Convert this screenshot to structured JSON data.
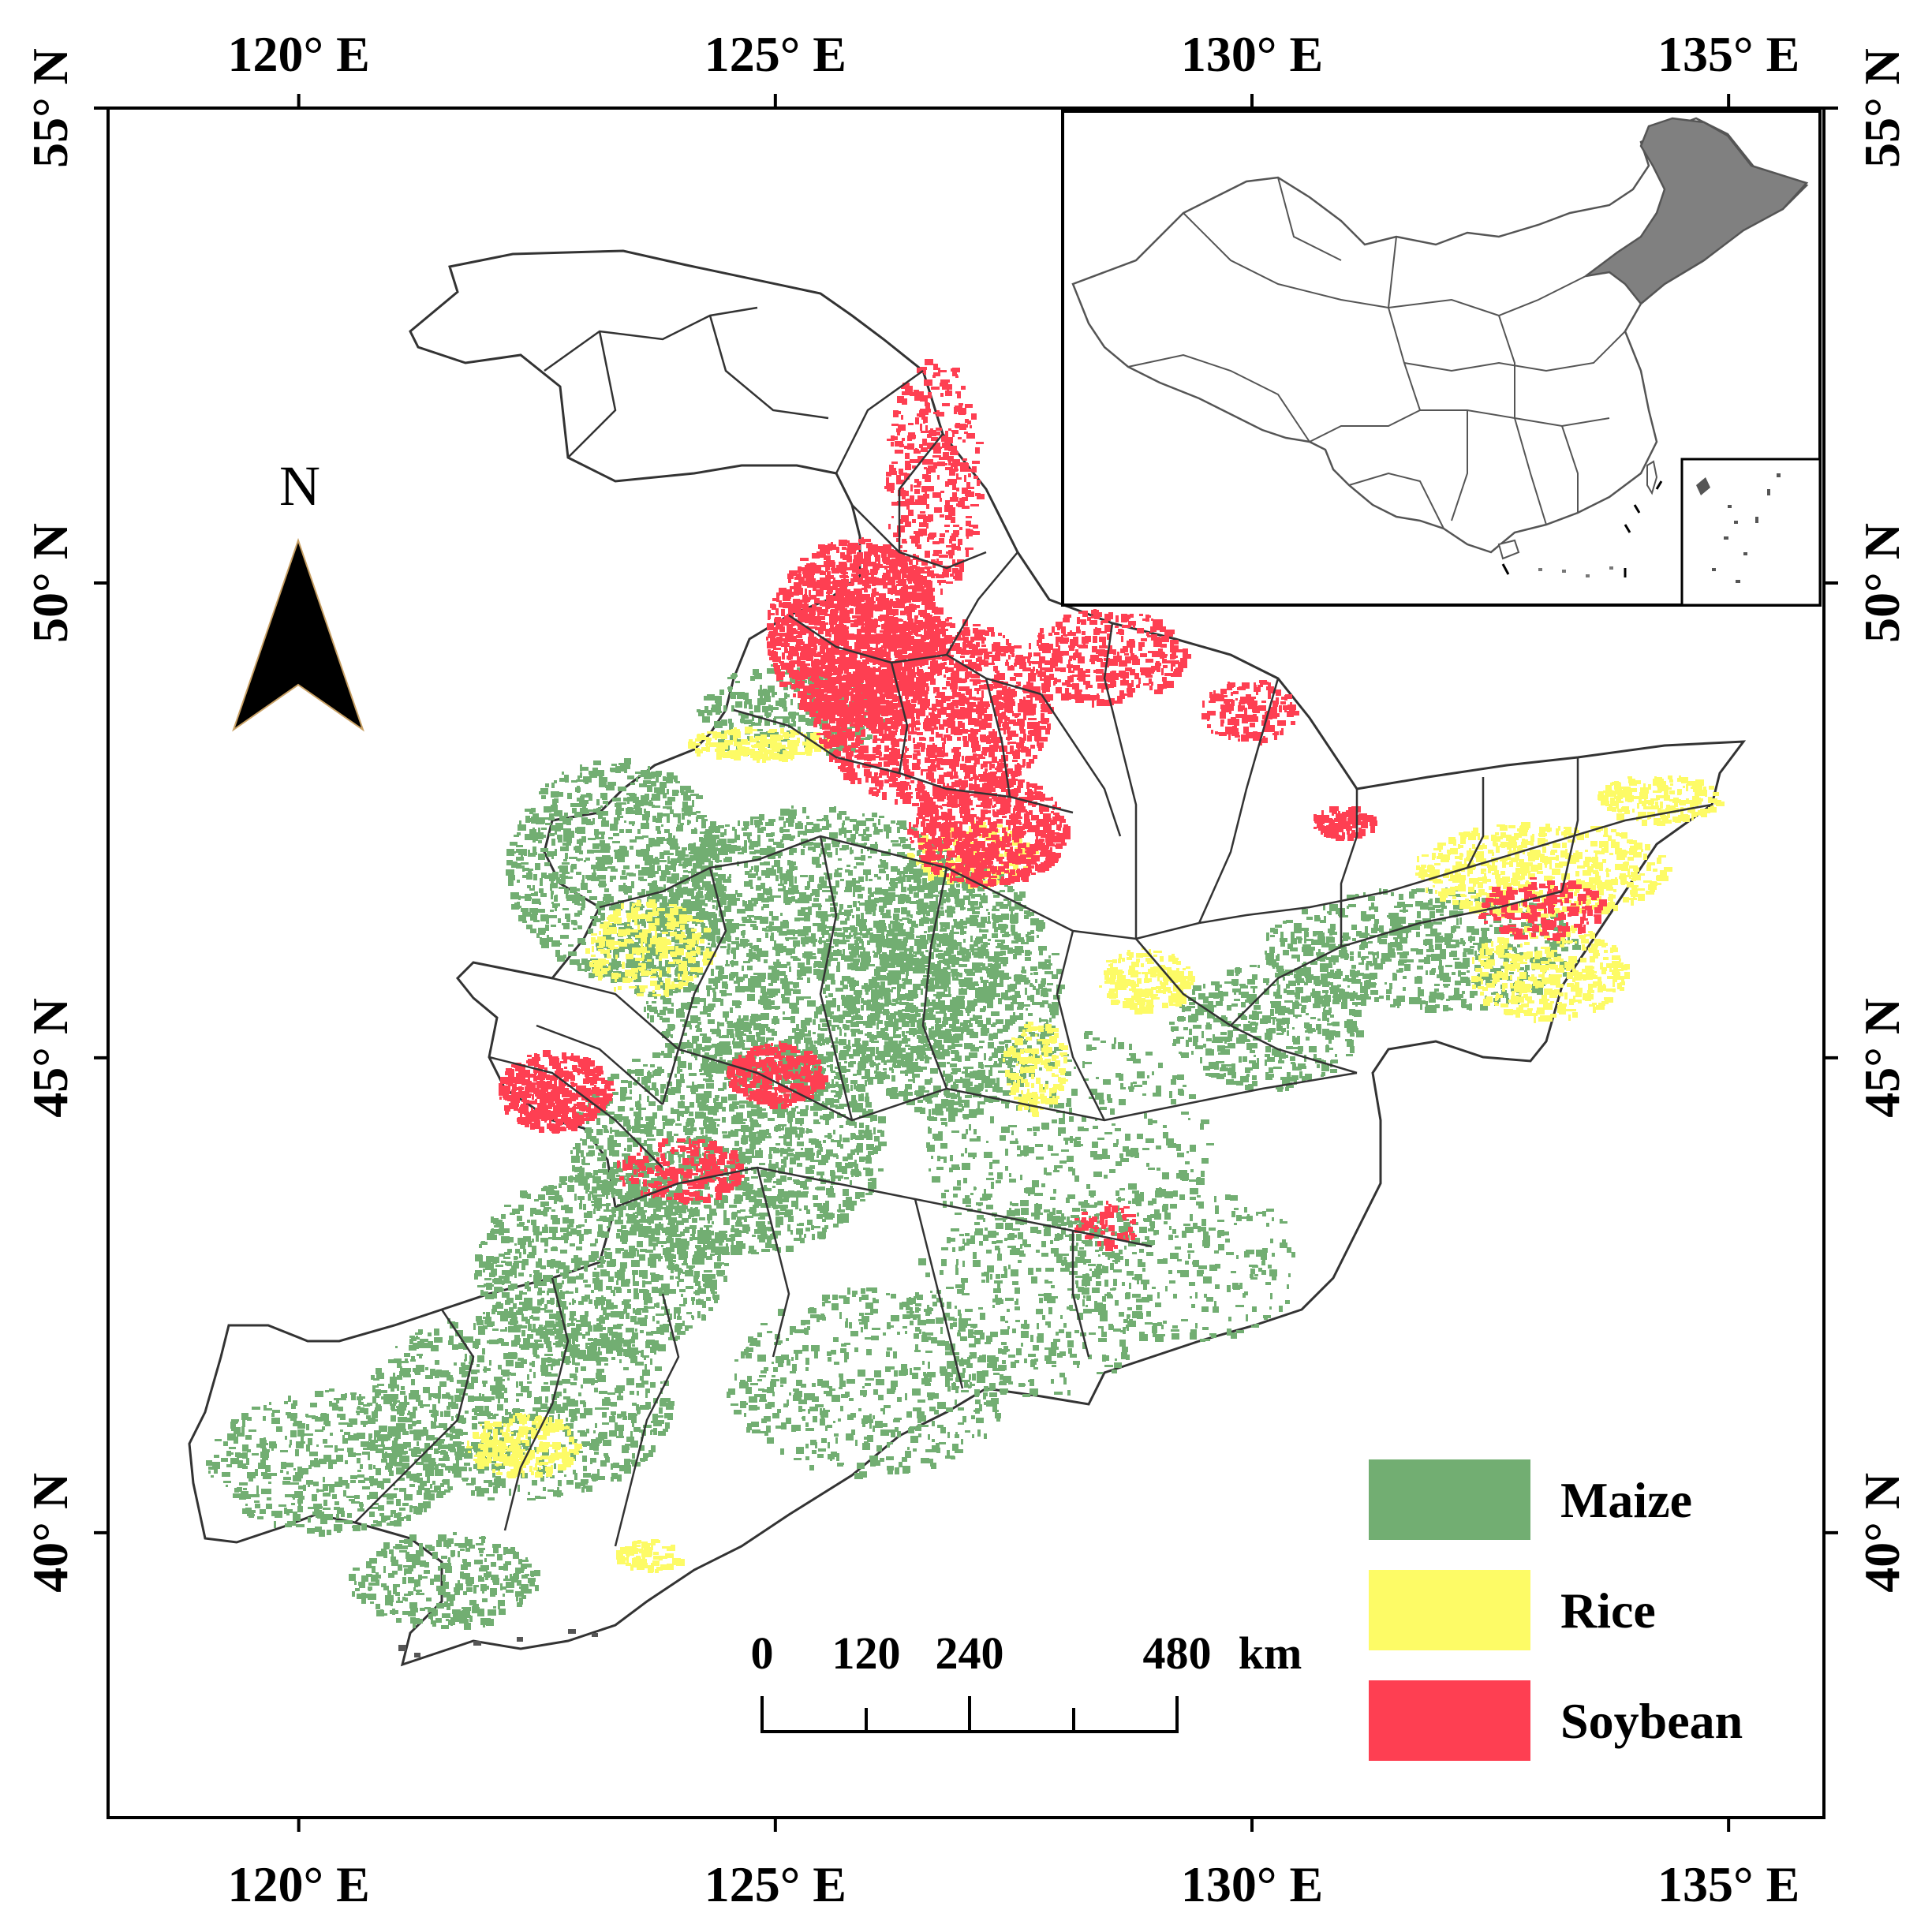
{
  "map": {
    "lon_ticks": [
      120,
      125,
      130,
      135
    ],
    "lon_tick_labels": [
      "120° E",
      "125° E",
      "130° E",
      "135° E"
    ],
    "lat_ticks": [
      55,
      50,
      45,
      40
    ],
    "lat_tick_labels": [
      "55° N",
      "50° N",
      "45° N",
      "40° N"
    ],
    "extent": {
      "lon": [
        118,
        136
      ],
      "lat": [
        37,
        55
      ]
    },
    "north_arrow_label": "N",
    "region_shown": "Northeast China",
    "inset": {
      "highlight_color": "#808080"
    }
  },
  "legend": {
    "items": [
      {
        "label": "Maize",
        "color": "#72ae72"
      },
      {
        "label": "Rice",
        "color": "#fdfb66"
      },
      {
        "label": "Soybean",
        "color": "#fe3f52"
      }
    ]
  },
  "scale_bar": {
    "ticks": [
      "0",
      "120",
      "240",
      "480"
    ],
    "unit": "km"
  },
  "colors": {
    "border": "#2b2b2b",
    "frame": "#000000"
  }
}
